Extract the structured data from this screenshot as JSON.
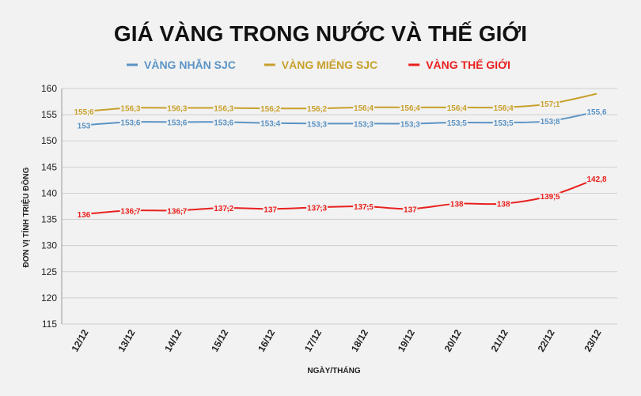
{
  "chart_data": {
    "type": "line",
    "title": "GIÁ VÀNG TRONG NƯỚC VÀ THẾ GIỚI",
    "xlabel": "NGÀY/THÁNG",
    "ylabel": "ĐƠN VỊ TÍNH TRIỆU ĐỒNG",
    "ylim": [
      115,
      160
    ],
    "yticks": [
      115,
      120,
      125,
      130,
      135,
      140,
      145,
      150,
      155,
      160
    ],
    "grid": true,
    "legend_position": "top-center",
    "categories": [
      "12/12",
      "13/12",
      "14/12",
      "15/12",
      "16/12",
      "17/12",
      "18/12",
      "19/12",
      "20/12",
      "21/12",
      "22/12",
      "23/12"
    ],
    "series": [
      {
        "name": "VÀNG NHẪN SJC",
        "color": "#5b93c4",
        "values": [
          153,
          153.6,
          153.6,
          153.6,
          153.4,
          153.3,
          153.3,
          153.3,
          153.5,
          153.5,
          153.8,
          155.6
        ],
        "labels": [
          "153",
          "153,6",
          "153,6",
          "153,6",
          "153,4",
          "153,3",
          "153,3",
          "153,3",
          "153,5",
          "153,5",
          "153,8",
          "155,6"
        ]
      },
      {
        "name": "VÀNG MIẾNG SJC",
        "color": "#c8a02a",
        "values": [
          155.6,
          156.3,
          156.3,
          156.3,
          156.2,
          156.2,
          156.4,
          156.4,
          156.4,
          156.4,
          157.1,
          159
        ],
        "labels": [
          "155,6",
          "156,3",
          "156,3",
          "156,3",
          "156,2",
          "156,2",
          "156,4",
          "156,4",
          "156,4",
          "156,4",
          "157,1",
          ""
        ]
      },
      {
        "name": "VÀNG THẾ GIỚI",
        "color": "#e8201e",
        "values": [
          136,
          136.7,
          136.7,
          137.2,
          137,
          137.3,
          137.5,
          137,
          138,
          138,
          139.5,
          142.8
        ],
        "labels": [
          "136",
          "136,7",
          "136,7",
          "137,2",
          "137",
          "137,3",
          "137,5",
          "137",
          "138",
          "138",
          "139,5",
          "142,8"
        ]
      }
    ]
  }
}
